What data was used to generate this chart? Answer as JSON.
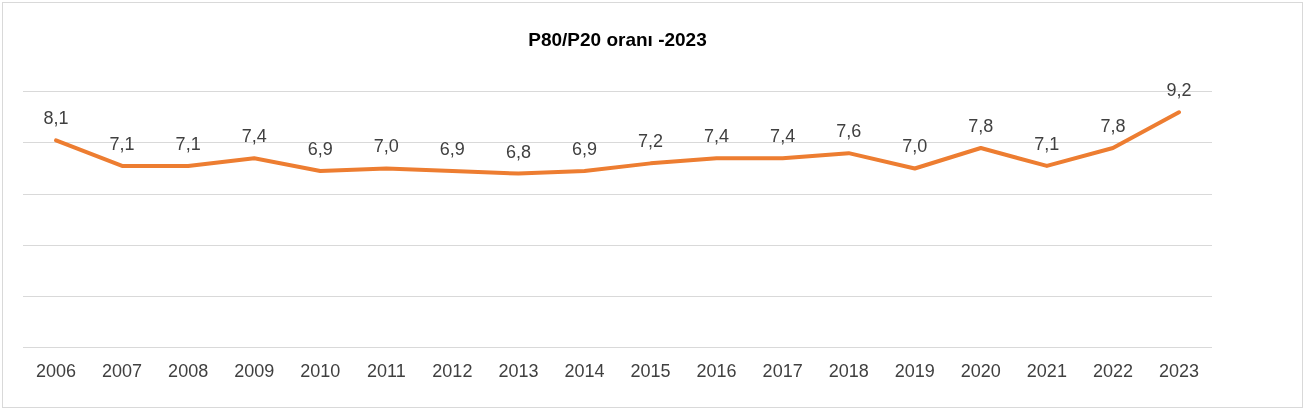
{
  "chart_data": {
    "type": "line",
    "title": "P80/P20 oranı -2023",
    "categories": [
      "2006",
      "2007",
      "2008",
      "2009",
      "2010",
      "2011",
      "2012",
      "2013",
      "2014",
      "2015",
      "2016",
      "2017",
      "2018",
      "2019",
      "2020",
      "2021",
      "2022",
      "2023"
    ],
    "series": [
      {
        "color": "#ed7d31",
        "values": [
          8.1,
          7.1,
          7.1,
          7.4,
          6.9,
          7.0,
          6.9,
          6.8,
          6.9,
          7.2,
          7.4,
          7.4,
          7.6,
          7.0,
          7.8,
          7.1,
          7.8,
          9.2
        ],
        "value_labels": [
          "8,1",
          "7,1",
          "7,1",
          "7,4",
          "6,9",
          "7,0",
          "6,9",
          "6,8",
          "6,9",
          "7,2",
          "7,4",
          "7,4",
          "7,6",
          "7,0",
          "7,8",
          "7,1",
          "7,8",
          "9,2"
        ]
      }
    ],
    "ylim": [
      0,
      10
    ],
    "yticks": [
      {
        "value": 0,
        "label": null
      },
      {
        "value": 2,
        "label": null
      },
      {
        "value": 4,
        "label": null
      },
      {
        "value": 6,
        "label": null
      },
      {
        "value": 8,
        "label": null
      },
      {
        "value": 10,
        "label": null
      }
    ],
    "tick_labels": "x",
    "grid": "y",
    "legend": false,
    "marker": "none",
    "line_style": "solid"
  }
}
